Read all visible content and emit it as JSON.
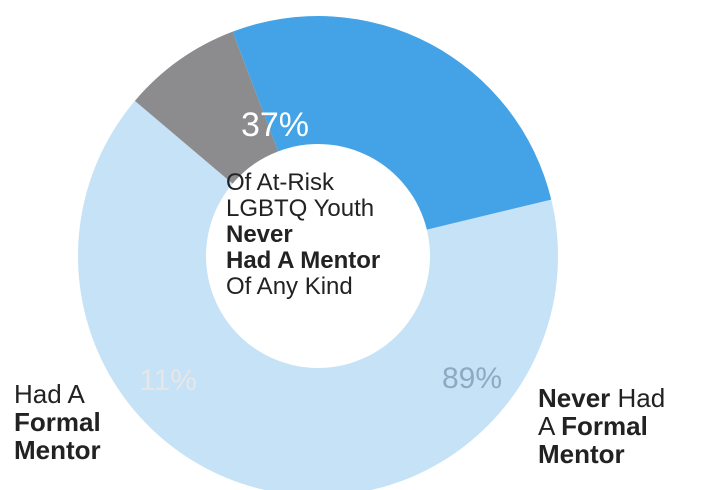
{
  "chart_data": {
    "type": "pie",
    "donut": true,
    "slices": [
      {
        "value": 37,
        "label": "37%",
        "color": "#43a3e6"
      },
      {
        "value": 11,
        "label": "11%",
        "color": "#8c8c8f",
        "name_parts": [
          "Had A",
          "Formal",
          "Mentor"
        ]
      },
      {
        "value": 89,
        "label": "89%",
        "color": "#c5e2f7",
        "name_parts": [
          "Never",
          "Had",
          "A",
          "Formal",
          "Mentor"
        ]
      }
    ],
    "center_text": [
      "Of At-Risk",
      "LGBTQ Youth",
      "Never",
      "Had A Mentor",
      "Of Any Kind"
    ]
  }
}
